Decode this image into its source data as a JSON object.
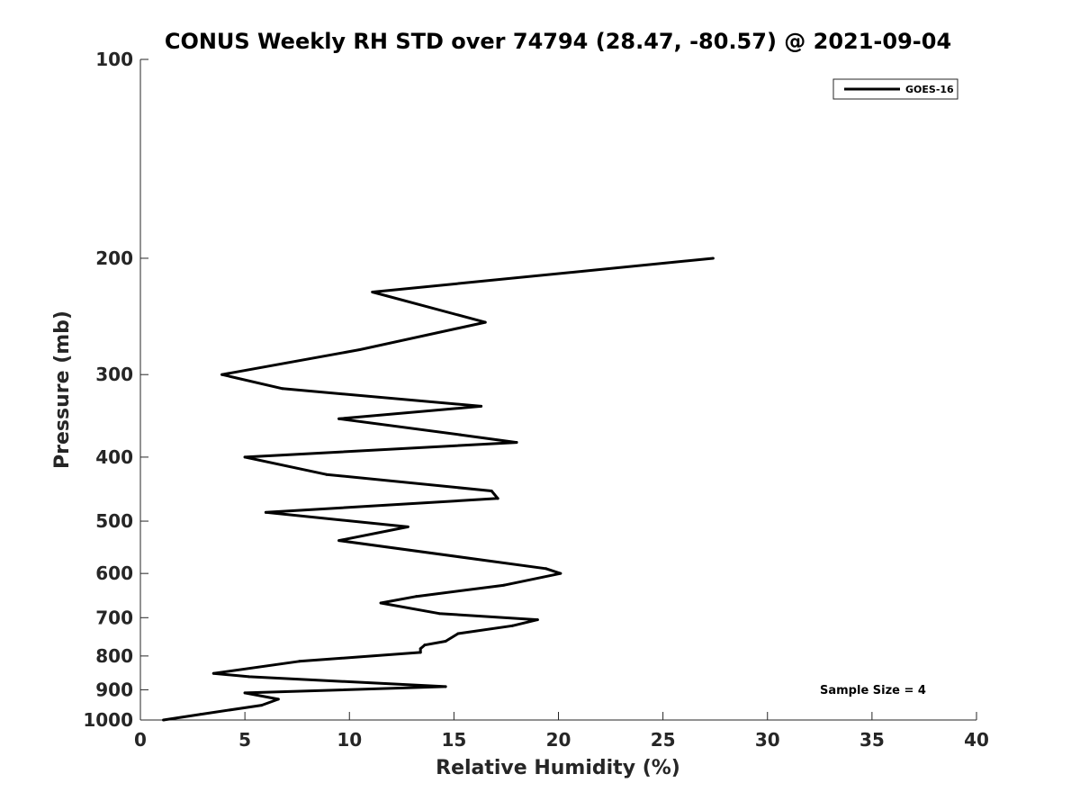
{
  "chart_data": {
    "type": "line",
    "title": "CONUS Weekly RH STD over 74794 (28.47, -80.57) @ 2021-09-04",
    "xlabel": "Relative Humidity (%)",
    "ylabel": "Pressure (mb)",
    "xlim": [
      0,
      40
    ],
    "ylim": [
      100,
      1000
    ],
    "yscale": "log",
    "y_reversed": true,
    "x_ticks": [
      0,
      5,
      10,
      15,
      20,
      25,
      30,
      35,
      40
    ],
    "x_tick_labels": [
      "0",
      "5",
      "10",
      "15",
      "20",
      "25",
      "30",
      "35",
      "40"
    ],
    "y_ticks": [
      100,
      200,
      300,
      400,
      500,
      600,
      700,
      800,
      900,
      1000
    ],
    "y_tick_labels": [
      "100",
      "200",
      "300",
      "400",
      "500",
      "600",
      "700",
      "800",
      "900",
      "1000"
    ],
    "grid": false,
    "legend_position": "top-right",
    "annotation": "Sample Size = 4",
    "series": [
      {
        "name": "GOES-16",
        "color": "#000000",
        "x": [
          27.4,
          11.1,
          16.5,
          10.5,
          3.9,
          6.8,
          16.3,
          9.5,
          15.3,
          18.0,
          5.0,
          8.9,
          16.8,
          17.1,
          6.0,
          12.8,
          9.5,
          19.4,
          20.1,
          17.4,
          13.2,
          11.5,
          14.3,
          19.0,
          17.8,
          15.2,
          14.6,
          13.6,
          13.4,
          13.4,
          7.6,
          3.5,
          5.2,
          14.6,
          5.0,
          6.6,
          5.8,
          2.9,
          1.1
        ],
        "y": [
          200,
          225,
          250,
          275,
          300,
          315,
          335,
          350,
          370,
          380,
          400,
          425,
          450,
          462,
          485,
          510,
          535,
          590,
          600,
          625,
          650,
          665,
          690,
          705,
          720,
          740,
          760,
          770,
          780,
          790,
          815,
          850,
          860,
          890,
          910,
          930,
          950,
          980,
          1000
        ]
      }
    ]
  }
}
